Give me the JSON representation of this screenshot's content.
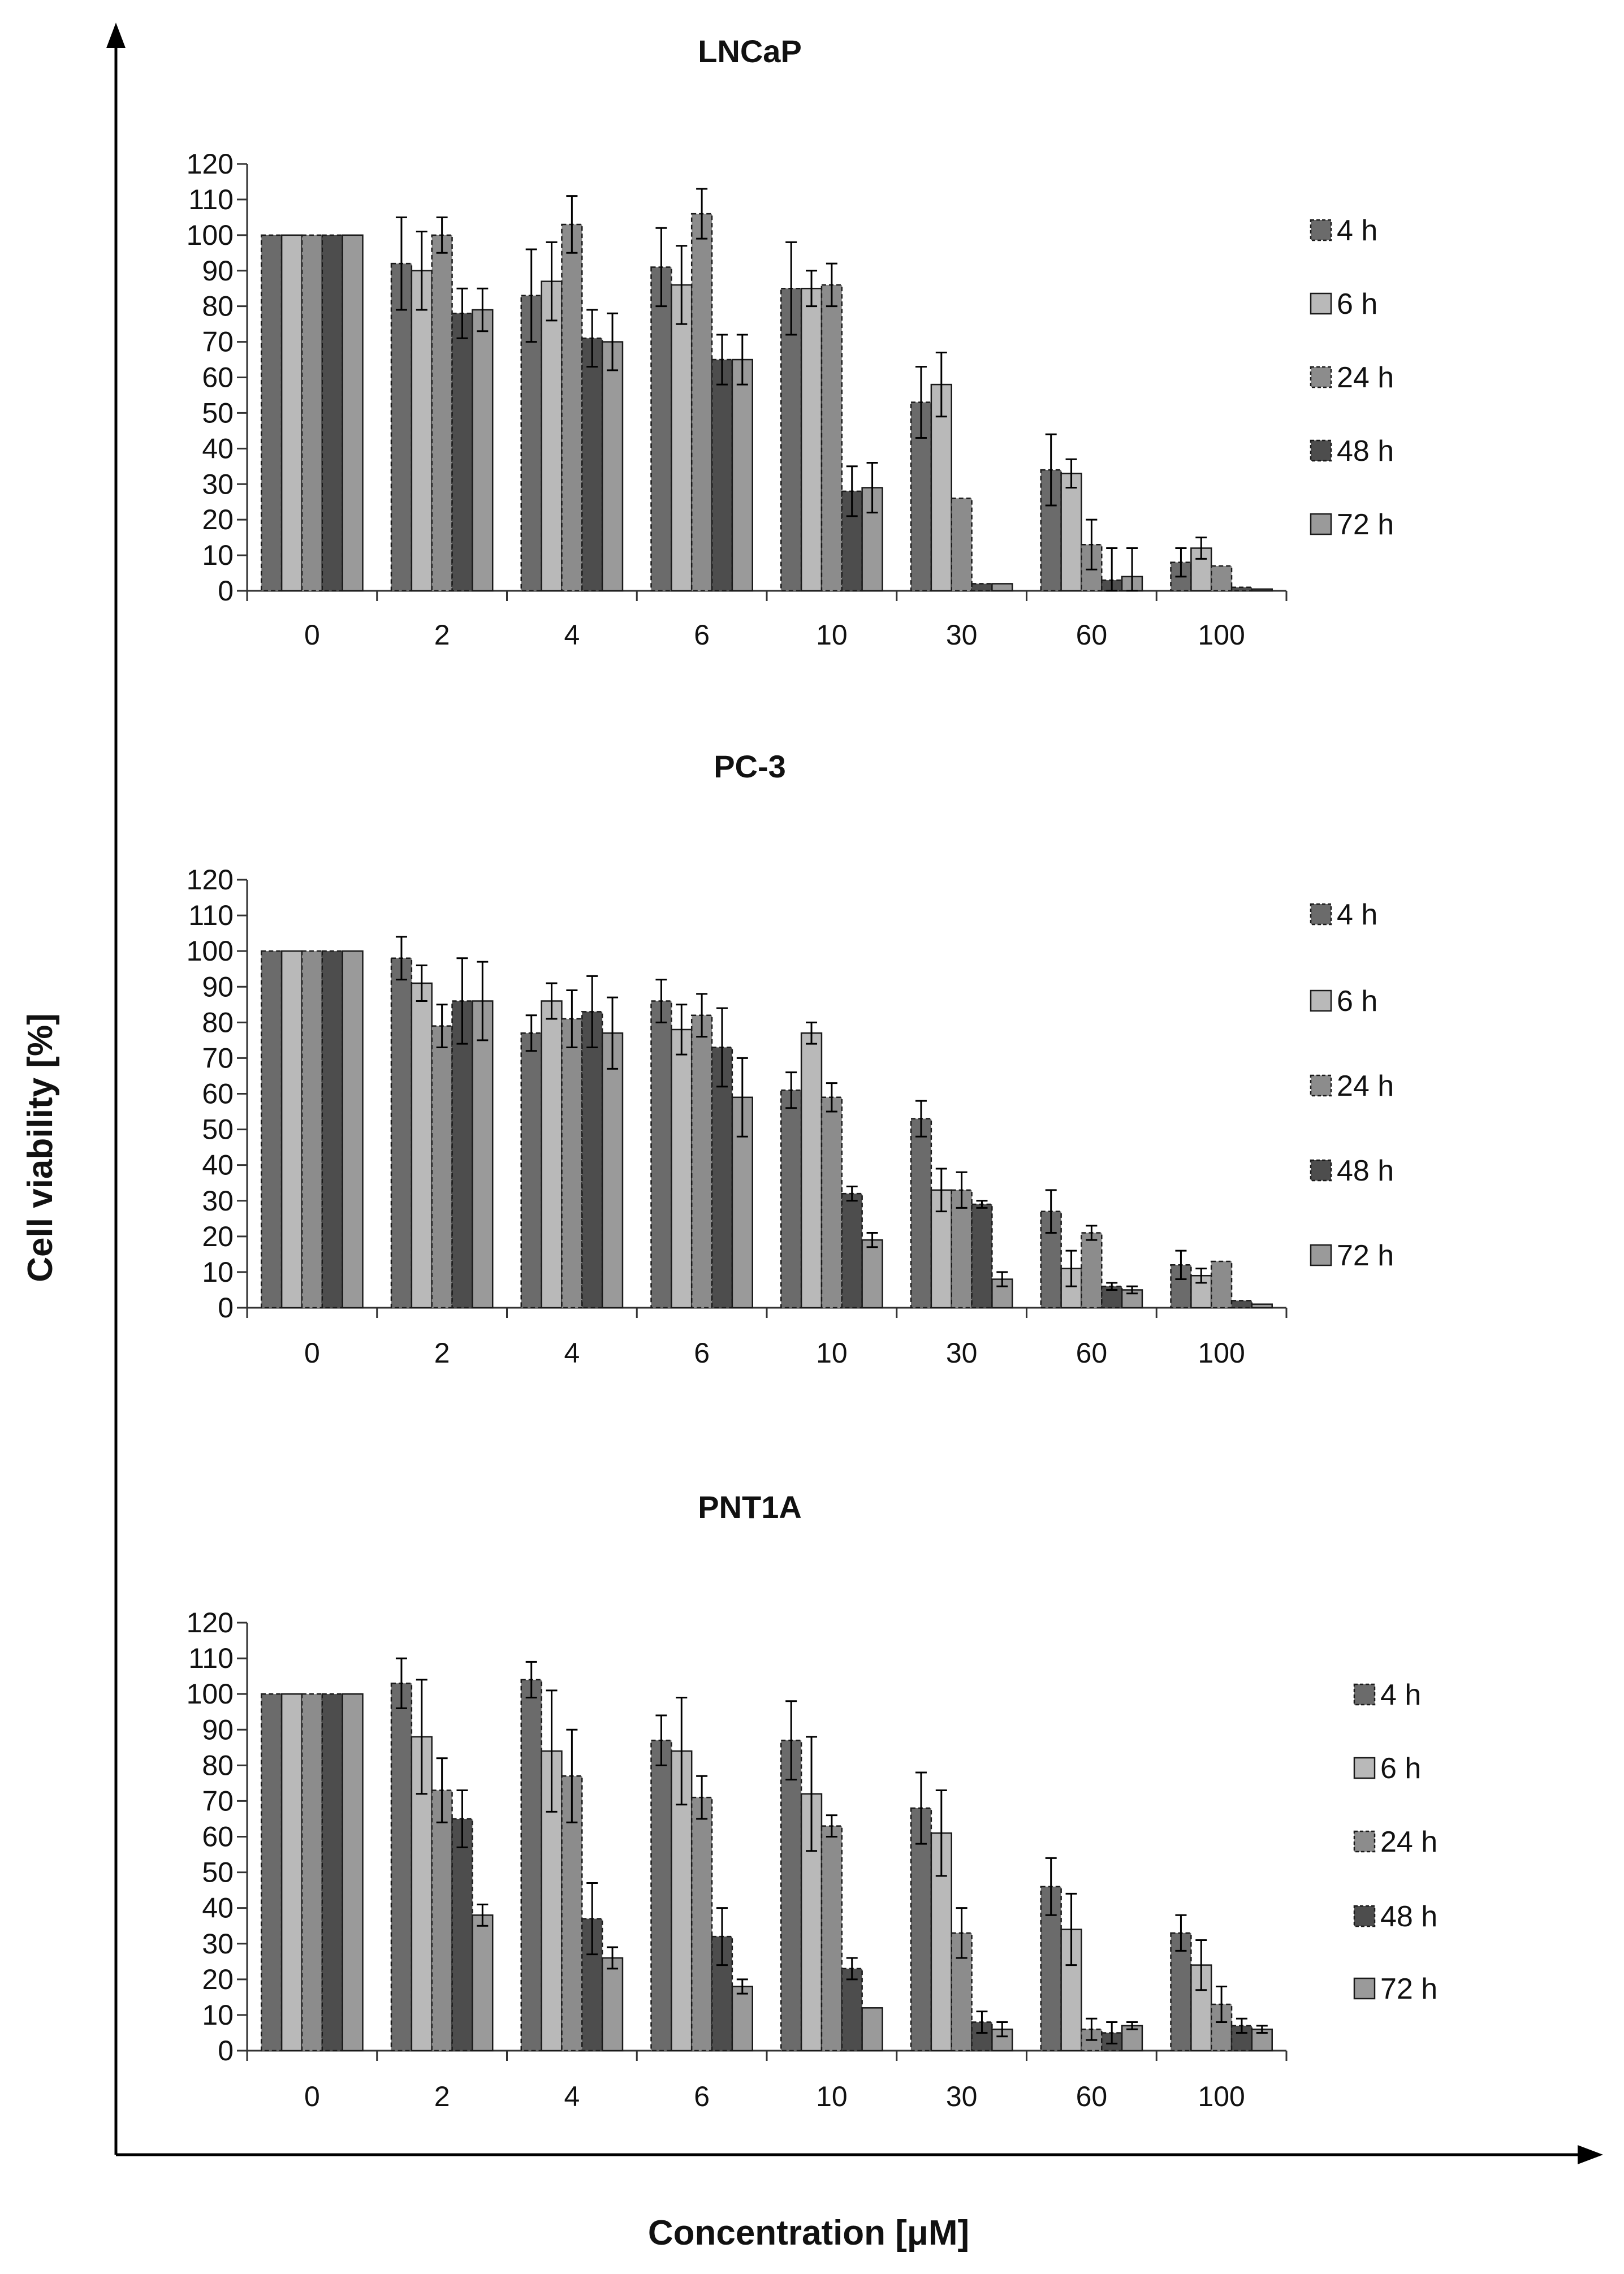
{
  "figure": {
    "y_axis_title": "Cell viability [%]",
    "x_axis_title": "Concentration [μM]"
  },
  "series_styles": [
    {
      "name": "4 h",
      "color": "#6b6b6b",
      "dashed": true
    },
    {
      "name": "6 h",
      "color": "#b9b9b9",
      "dashed": false
    },
    {
      "name": "24 h",
      "color": "#8c8c8c",
      "dashed": true
    },
    {
      "name": "48 h",
      "color": "#4d4d4d",
      "dashed": true
    },
    {
      "name": "72 h",
      "color": "#9a9a9a",
      "dashed": false
    }
  ],
  "chart_data": [
    {
      "type": "bar",
      "title": "LNCaP",
      "categories": [
        "0",
        "2",
        "4",
        "6",
        "10",
        "30",
        "60",
        "100"
      ],
      "ylim": [
        0,
        120
      ],
      "yticks": [
        0,
        10,
        20,
        30,
        40,
        50,
        60,
        70,
        80,
        90,
        100,
        110,
        120
      ],
      "xlabel": "Concentration [μM]",
      "ylabel": "Cell viability [%]",
      "legend_position": "right",
      "series": [
        {
          "name": "4 h",
          "values": [
            100,
            92,
            83,
            91,
            85,
            53,
            34,
            8
          ],
          "errors": [
            0,
            13,
            13,
            11,
            13,
            10,
            10,
            4
          ]
        },
        {
          "name": "6 h",
          "values": [
            100,
            90,
            87,
            86,
            85,
            58,
            33,
            12
          ],
          "errors": [
            0,
            11,
            11,
            11,
            5,
            9,
            4,
            3
          ]
        },
        {
          "name": "24 h",
          "values": [
            100,
            100,
            103,
            106,
            86,
            26,
            13,
            7
          ],
          "errors": [
            0,
            5,
            8,
            7,
            6,
            0,
            7,
            0
          ]
        },
        {
          "name": "48 h",
          "values": [
            100,
            78,
            71,
            65,
            28,
            2,
            3,
            1
          ],
          "errors": [
            0,
            7,
            8,
            7,
            7,
            0,
            9,
            0
          ]
        },
        {
          "name": "72 h",
          "values": [
            100,
            79,
            70,
            65,
            29,
            2,
            4,
            0.5
          ],
          "errors": [
            0,
            6,
            8,
            7,
            7,
            0,
            8,
            0
          ]
        }
      ]
    },
    {
      "type": "bar",
      "title": "PC-3",
      "categories": [
        "0",
        "2",
        "4",
        "6",
        "10",
        "30",
        "60",
        "100"
      ],
      "ylim": [
        0,
        120
      ],
      "yticks": [
        0,
        10,
        20,
        30,
        40,
        50,
        60,
        70,
        80,
        90,
        100,
        110,
        120
      ],
      "xlabel": "Concentration [μM]",
      "ylabel": "Cell viability [%]",
      "legend_position": "right",
      "series": [
        {
          "name": "4 h",
          "values": [
            100,
            98,
            77,
            86,
            61,
            53,
            27,
            12
          ],
          "errors": [
            0,
            6,
            5,
            6,
            5,
            5,
            6,
            4
          ]
        },
        {
          "name": "6 h",
          "values": [
            100,
            91,
            86,
            78,
            77,
            33,
            11,
            9
          ],
          "errors": [
            0,
            5,
            5,
            7,
            3,
            6,
            5,
            2
          ]
        },
        {
          "name": "24 h",
          "values": [
            100,
            79,
            81,
            82,
            59,
            33,
            21,
            13
          ],
          "errors": [
            0,
            6,
            8,
            6,
            4,
            5,
            2,
            0
          ]
        },
        {
          "name": "48 h",
          "values": [
            100,
            86,
            83,
            73,
            32,
            29,
            6,
            2
          ],
          "errors": [
            0,
            12,
            10,
            11,
            2,
            1,
            1,
            0
          ]
        },
        {
          "name": "72 h",
          "values": [
            100,
            86,
            77,
            59,
            19,
            8,
            5,
            1
          ],
          "errors": [
            0,
            11,
            10,
            11,
            2,
            2,
            1,
            0
          ]
        }
      ]
    },
    {
      "type": "bar",
      "title": "PNT1A",
      "categories": [
        "0",
        "2",
        "4",
        "6",
        "10",
        "30",
        "60",
        "100"
      ],
      "ylim": [
        0,
        120
      ],
      "yticks": [
        0,
        10,
        20,
        30,
        40,
        50,
        60,
        70,
        80,
        90,
        100,
        110,
        120
      ],
      "xlabel": "Concentration [μM]",
      "ylabel": "Cell viability [%]",
      "legend_position": "right",
      "series": [
        {
          "name": "4 h",
          "values": [
            100,
            103,
            104,
            87,
            87,
            68,
            46,
            33
          ],
          "errors": [
            0,
            7,
            5,
            7,
            11,
            10,
            8,
            5
          ]
        },
        {
          "name": "6 h",
          "values": [
            100,
            88,
            84,
            84,
            72,
            61,
            34,
            24
          ],
          "errors": [
            0,
            16,
            17,
            15,
            16,
            12,
            10,
            7
          ]
        },
        {
          "name": "24 h",
          "values": [
            100,
            73,
            77,
            71,
            63,
            33,
            6,
            13
          ],
          "errors": [
            0,
            9,
            13,
            6,
            3,
            7,
            3,
            5
          ]
        },
        {
          "name": "48 h",
          "values": [
            100,
            65,
            37,
            32,
            23,
            8,
            5,
            7
          ],
          "errors": [
            0,
            8,
            10,
            8,
            3,
            3,
            3,
            2
          ]
        },
        {
          "name": "72 h",
          "values": [
            100,
            38,
            26,
            18,
            12,
            6,
            7,
            6
          ],
          "errors": [
            0,
            3,
            3,
            2,
            0,
            2,
            1,
            1
          ]
        }
      ]
    }
  ]
}
